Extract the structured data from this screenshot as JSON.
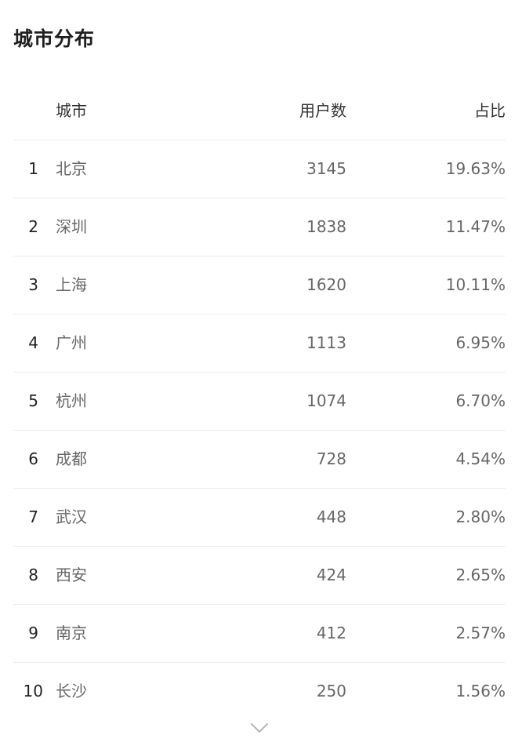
{
  "title": "城市分布",
  "table": {
    "headers": {
      "city": "城市",
      "users": "用户数",
      "share": "占比"
    },
    "rows": [
      {
        "rank": "1",
        "city": "北京",
        "users": "3145",
        "share": "19.63%"
      },
      {
        "rank": "2",
        "city": "深圳",
        "users": "1838",
        "share": "11.47%"
      },
      {
        "rank": "3",
        "city": "上海",
        "users": "1620",
        "share": "10.11%"
      },
      {
        "rank": "4",
        "city": "广州",
        "users": "1113",
        "share": "6.95%"
      },
      {
        "rank": "5",
        "city": "杭州",
        "users": "1074",
        "share": "6.70%"
      },
      {
        "rank": "6",
        "city": "成都",
        "users": "728",
        "share": "4.54%"
      },
      {
        "rank": "7",
        "city": "武汉",
        "users": "448",
        "share": "2.80%"
      },
      {
        "rank": "8",
        "city": "西安",
        "users": "424",
        "share": "2.65%"
      },
      {
        "rank": "9",
        "city": "南京",
        "users": "412",
        "share": "2.57%"
      },
      {
        "rank": "10",
        "city": "长沙",
        "users": "250",
        "share": "1.56%"
      }
    ]
  },
  "expand_icon": "chevron-down-icon"
}
